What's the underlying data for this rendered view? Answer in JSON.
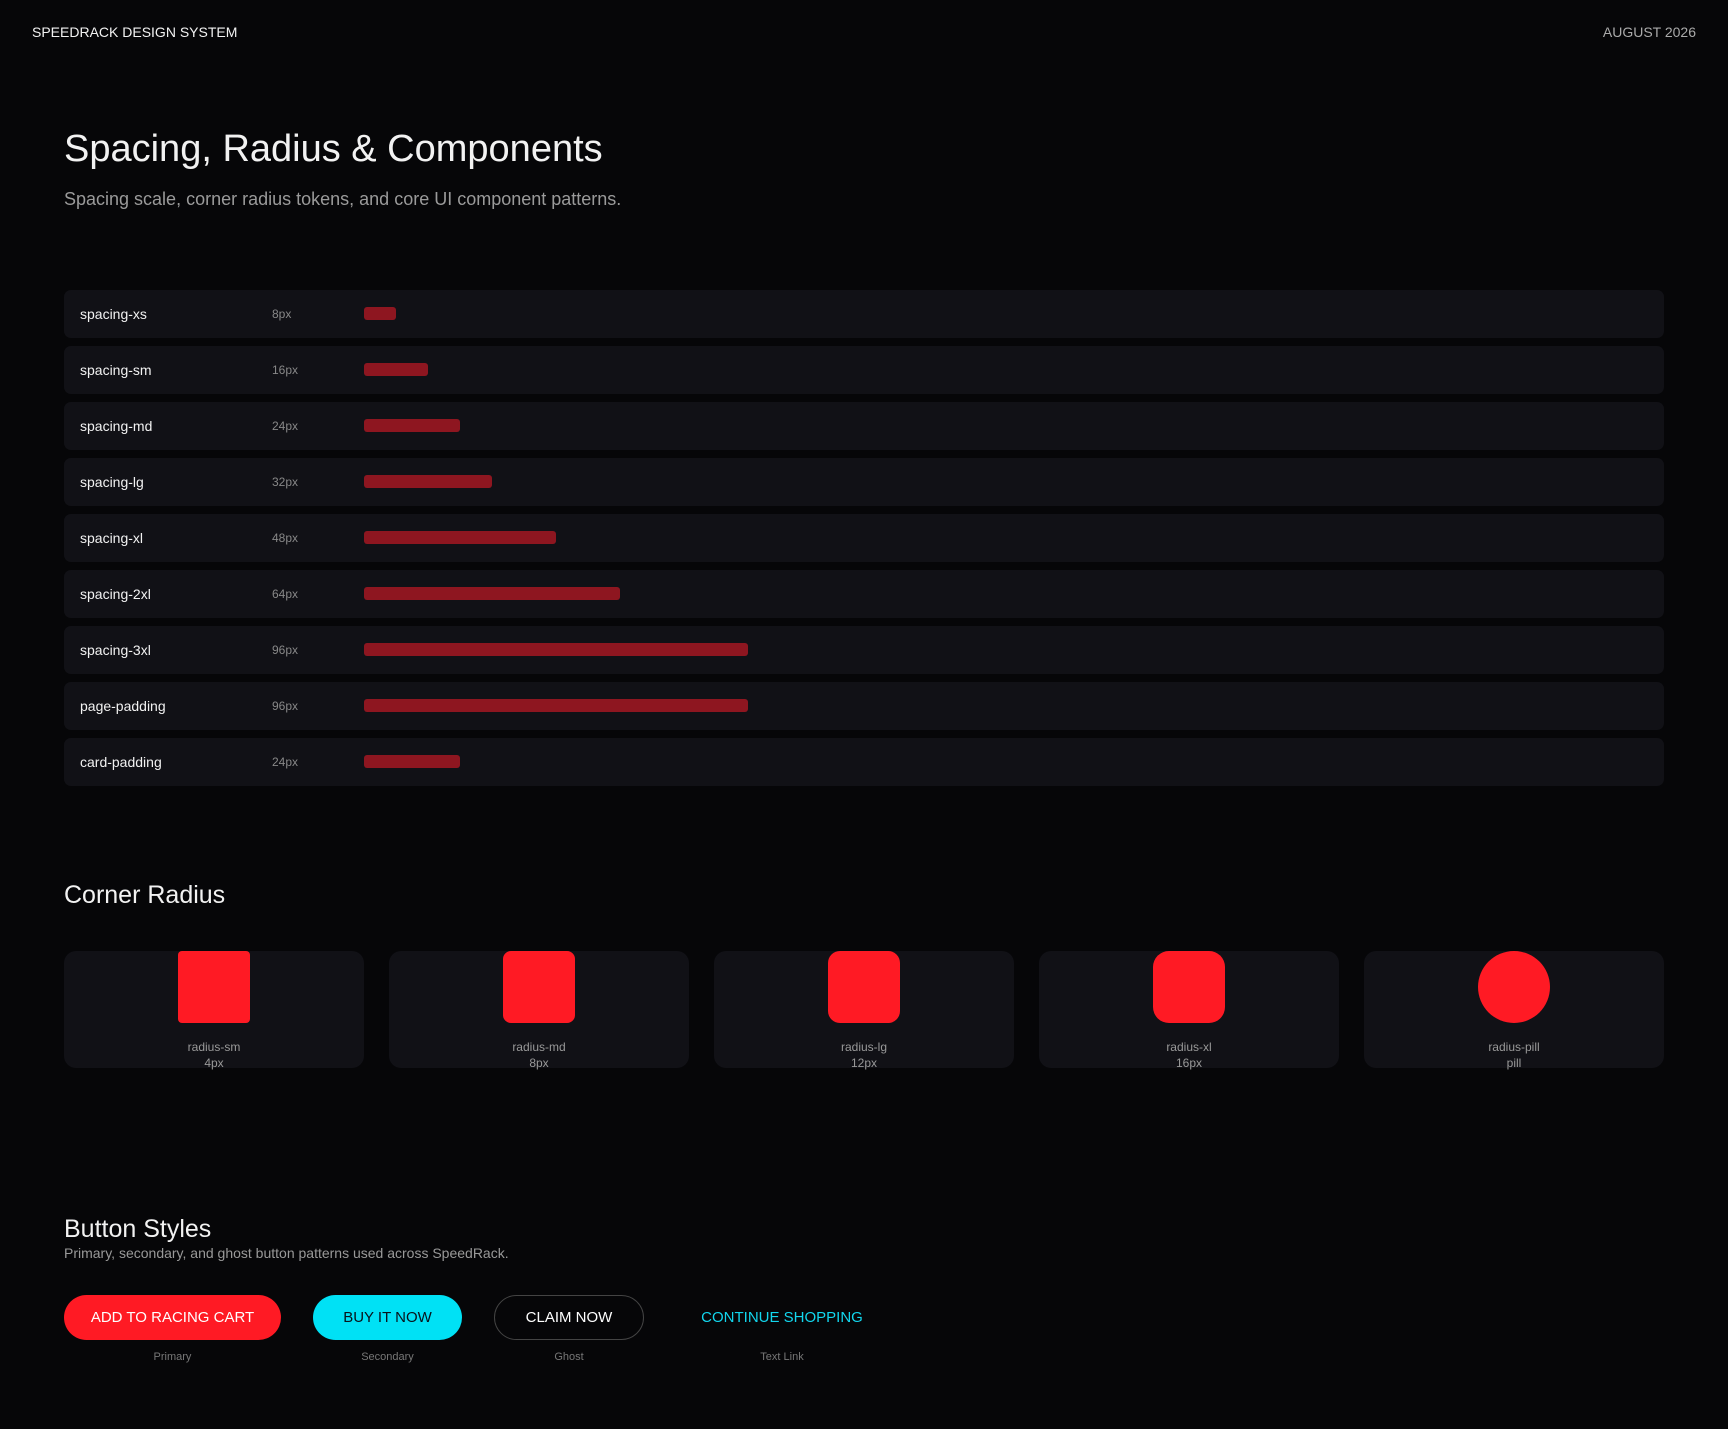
{
  "header": {
    "brand": "SPEEDRACK DESIGN SYSTEM",
    "date": "AUGUST 2026"
  },
  "title": "Spacing, Radius & Components",
  "subtitle": "Spacing scale, corner radius tokens, and core UI component patterns.",
  "spacing": [
    {
      "name": "spacing-xs",
      "value": 8,
      "label": "8px"
    },
    {
      "name": "spacing-sm",
      "value": 16,
      "label": "16px"
    },
    {
      "name": "spacing-md",
      "value": 24,
      "label": "24px"
    },
    {
      "name": "spacing-lg",
      "value": 32,
      "label": "32px"
    },
    {
      "name": "spacing-xl",
      "value": 48,
      "label": "48px"
    },
    {
      "name": "spacing-2xl",
      "value": 64,
      "label": "64px"
    },
    {
      "name": "spacing-3xl",
      "value": 96,
      "label": "96px"
    },
    {
      "name": "page-padding",
      "value": 96,
      "label": "96px"
    },
    {
      "name": "card-padding",
      "value": 24,
      "label": "24px"
    }
  ],
  "radius": {
    "title": "Corner Radius",
    "items": [
      {
        "name": "radius-sm",
        "value": 4,
        "label": "4px"
      },
      {
        "name": "radius-md",
        "value": 8,
        "label": "8px"
      },
      {
        "name": "radius-lg",
        "value": 12,
        "label": "12px"
      },
      {
        "name": "radius-xl",
        "value": 16,
        "label": "16px"
      },
      {
        "name": "radius-pill",
        "label": "pill"
      }
    ]
  },
  "buttons": {
    "title": "Button Styles",
    "subtitle": "Primary, secondary, and ghost button patterns used across SpeedRack.",
    "items": [
      {
        "text": "ADD TO RACING CART",
        "caption": "Primary"
      },
      {
        "text": "BUY IT NOW",
        "caption": "Secondary"
      },
      {
        "text": "CLAIM NOW",
        "caption": "Ghost"
      },
      {
        "text": "CONTINUE SHOPPING",
        "caption": "Text Link"
      }
    ]
  }
}
